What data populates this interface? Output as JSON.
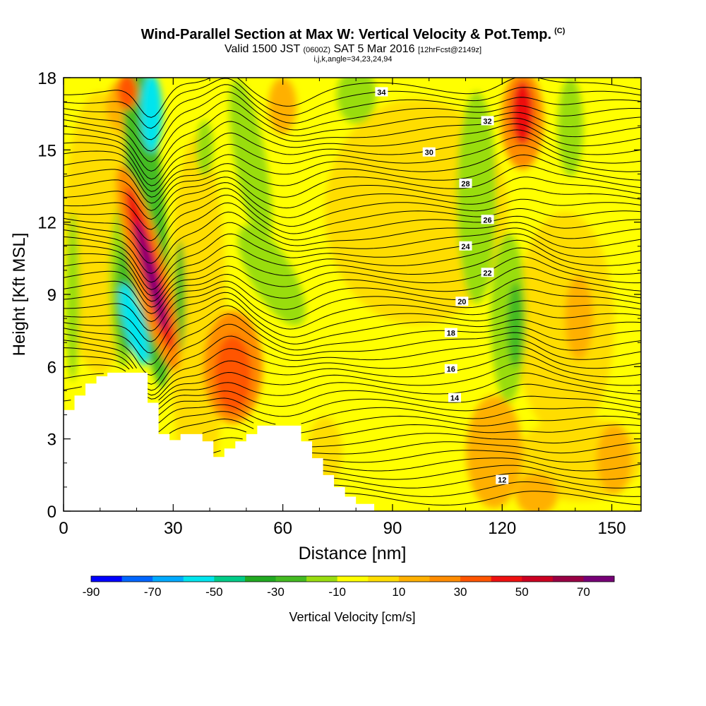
{
  "chart_data": {
    "type": "heatmap",
    "title": "Wind-Parallel Section at Max W: Vertical Velocity & Pot.Temp.",
    "title_tag": "(C)",
    "subtitle": {
      "valid": "Valid 1500 JST",
      "utc": "(0600Z)",
      "date": "SAT 5 Mar 2016",
      "forecast": "[12hrFcst@2149z]"
    },
    "subtitle2": "i,j,k,angle=34,23,24,94",
    "xlabel": "Distance [nm]",
    "ylabel": "Height [Kft MSL]",
    "xlim": [
      0,
      158
    ],
    "ylim": [
      0,
      18
    ],
    "xticks": [
      0,
      30,
      60,
      90,
      120,
      150
    ],
    "yticks": [
      0,
      3,
      6,
      9,
      12,
      15,
      18
    ],
    "colorbar": {
      "label": "Vertical Velocity [cm/s]",
      "range": [
        -90,
        80
      ],
      "tick_values": [
        -90,
        -70,
        -50,
        -30,
        -10,
        10,
        30,
        50,
        70
      ],
      "colors": [
        "#0000ff",
        "#0066ff",
        "#00aaff",
        "#00e5ee",
        "#00cc88",
        "#22aa22",
        "#44bb22",
        "#99dd11",
        "#ffff00",
        "#ffdd00",
        "#ffb000",
        "#ff8c00",
        "#ff5500",
        "#ee1111",
        "#cc0022",
        "#990044",
        "#770077"
      ]
    },
    "terrain": [
      [
        0,
        4.2
      ],
      [
        3,
        4.2
      ],
      [
        3,
        4.8
      ],
      [
        6,
        4.8
      ],
      [
        6,
        5.3
      ],
      [
        9,
        5.3
      ],
      [
        9,
        5.6
      ],
      [
        12,
        5.6
      ],
      [
        12,
        5.75
      ],
      [
        23,
        5.75
      ],
      [
        23,
        4.5
      ],
      [
        26,
        4.5
      ],
      [
        26,
        3.2
      ],
      [
        29,
        3.2
      ],
      [
        29,
        2.95
      ],
      [
        32,
        2.95
      ],
      [
        32,
        3.2
      ],
      [
        38,
        3.2
      ],
      [
        38,
        2.9
      ],
      [
        41,
        2.9
      ],
      [
        41,
        2.25
      ],
      [
        44,
        2.25
      ],
      [
        44,
        2.6
      ],
      [
        47,
        2.6
      ],
      [
        47,
        2.9
      ],
      [
        50,
        2.9
      ],
      [
        50,
        3.2
      ],
      [
        53,
        3.2
      ],
      [
        53,
        3.55
      ],
      [
        65,
        3.55
      ],
      [
        65,
        2.9
      ],
      [
        68,
        2.9
      ],
      [
        68,
        2.2
      ],
      [
        71,
        2.2
      ],
      [
        71,
        1.5
      ],
      [
        74,
        1.5
      ],
      [
        74,
        1.0
      ],
      [
        77,
        1.0
      ],
      [
        77,
        0.6
      ],
      [
        80,
        0.6
      ],
      [
        80,
        0.3
      ],
      [
        85,
        0.3
      ],
      [
        85,
        0
      ],
      [
        158,
        0
      ]
    ],
    "theta_contours": [
      {
        "value": 12,
        "label_x": 120,
        "label_y": 1.3
      },
      {
        "value": 14,
        "label_x": 107,
        "label_y": 4.7
      },
      {
        "value": 16,
        "label_x": 106,
        "label_y": 5.9
      },
      {
        "value": 18,
        "label_x": 106,
        "label_y": 7.4
      },
      {
        "value": 20,
        "label_x": 109,
        "label_y": 8.7
      },
      {
        "value": 22,
        "label_x": 116,
        "label_y": 9.9
      },
      {
        "value": 24,
        "label_x": 110,
        "label_y": 11.0
      },
      {
        "value": 26,
        "label_x": 116,
        "label_y": 12.1
      },
      {
        "value": 28,
        "label_x": 110,
        "label_y": 13.6
      },
      {
        "value": 30,
        "label_x": 100,
        "label_y": 14.9
      },
      {
        "value": 32,
        "label_x": 116,
        "label_y": 16.2
      },
      {
        "value": 34,
        "label_x": 87,
        "label_y": 17.4
      }
    ]
  }
}
